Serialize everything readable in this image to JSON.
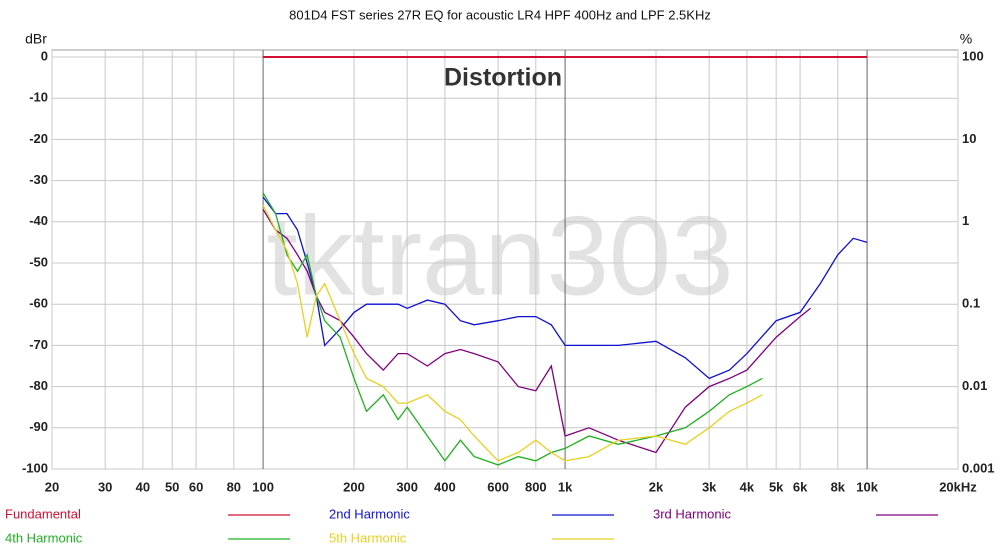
{
  "chart_data": {
    "type": "line",
    "title": "801D4 FST series 27R EQ for acoustic LR4 HPF 400Hz and LPF 2.5KHz",
    "annotation": "Distortion",
    "watermark": "tktran303",
    "y_label": "dBr",
    "y2_label": "%",
    "xscale": "log",
    "xlim": [
      20,
      20000
    ],
    "xticks": [
      20,
      30,
      40,
      50,
      60,
      80,
      100,
      200,
      300,
      400,
      600,
      800,
      {
        "value": 1000,
        "label": "1k"
      },
      {
        "value": 2000,
        "label": "2k"
      },
      {
        "value": 3000,
        "label": "3k"
      },
      {
        "value": 4000,
        "label": "4k"
      },
      {
        "value": 5000,
        "label": "5k"
      },
      {
        "value": 6000,
        "label": "6k"
      },
      {
        "value": 8000,
        "label": "8k"
      },
      {
        "value": 10000,
        "label": "10k"
      },
      {
        "value": 20000,
        "label": "20kHz"
      }
    ],
    "ylim": [
      -100,
      0
    ],
    "yticks": [
      0,
      -10,
      -20,
      -30,
      -40,
      -50,
      -60,
      -70,
      -80,
      -90,
      -100
    ],
    "y2scale": "log",
    "y2lim": [
      0.001,
      100
    ],
    "y2ticks": [
      100,
      10,
      1,
      0.1,
      0.01,
      0.001
    ],
    "grid": true,
    "legend": "bottom",
    "series": [
      {
        "name": "Fundamental",
        "color": "#d01030",
        "x": [
          100,
          10000
        ],
        "values": [
          0,
          0
        ]
      },
      {
        "name": "2nd Harmonic",
        "color": "#1010d0",
        "x": [
          100,
          110,
          120,
          130,
          140,
          150,
          160,
          180,
          200,
          220,
          250,
          280,
          300,
          350,
          400,
          450,
          500,
          600,
          700,
          800,
          900,
          1000,
          1200,
          1500,
          2000,
          2500,
          3000,
          3500,
          4000,
          5000,
          6000,
          7000,
          8000,
          9000,
          10000
        ],
        "values": [
          -34,
          -38,
          -38,
          -42,
          -50,
          -58,
          -70,
          -66,
          -62,
          -60,
          -60,
          -60,
          -61,
          -59,
          -60,
          -64,
          -65,
          -64,
          -63,
          -63,
          -65,
          -70,
          -70,
          -70,
          -69,
          -73,
          -78,
          -76,
          -72,
          -64,
          -62,
          -55,
          -48,
          -44,
          -45
        ]
      },
      {
        "name": "3rd Harmonic",
        "color": "#800080",
        "x": [
          100,
          110,
          120,
          130,
          140,
          150,
          160,
          180,
          200,
          220,
          250,
          280,
          300,
          350,
          400,
          450,
          500,
          600,
          700,
          800,
          900,
          1000,
          1200,
          1500,
          2000,
          2500,
          3000,
          3500,
          4000,
          5000,
          6000,
          6500
        ],
        "values": [
          -37,
          -42,
          -44,
          -48,
          -52,
          -58,
          -62,
          -64,
          -68,
          -72,
          -76,
          -72,
          -72,
          -75,
          -72,
          -71,
          -72,
          -74,
          -80,
          -81,
          -75,
          -92,
          -90,
          -93,
          -96,
          -85,
          -80,
          -78,
          -76,
          -68,
          -63,
          -61
        ]
      },
      {
        "name": "4th Harmonic",
        "color": "#20b020",
        "x": [
          100,
          110,
          120,
          130,
          140,
          150,
          160,
          180,
          200,
          220,
          250,
          280,
          300,
          350,
          400,
          450,
          500,
          600,
          700,
          800,
          900,
          1000,
          1200,
          1500,
          2000,
          2500,
          3000,
          3500,
          4000,
          4500
        ],
        "values": [
          -33,
          -38,
          -48,
          -52,
          -48,
          -58,
          -64,
          -68,
          -78,
          -86,
          -82,
          -88,
          -85,
          -92,
          -98,
          -93,
          -97,
          -99,
          -97,
          -98,
          -96,
          -95,
          -92,
          -94,
          -92,
          -90,
          -86,
          -82,
          -80,
          -78
        ]
      },
      {
        "name": "5th Harmonic",
        "color": "#e8d020",
        "x": [
          100,
          110,
          120,
          130,
          140,
          150,
          160,
          180,
          200,
          220,
          250,
          280,
          300,
          350,
          400,
          450,
          500,
          600,
          700,
          800,
          900,
          1000,
          1200,
          1500,
          2000,
          2500,
          3000,
          3500,
          4000,
          4500
        ],
        "values": [
          -36,
          -42,
          -47,
          -55,
          -68,
          -58,
          -55,
          -64,
          -72,
          -78,
          -80,
          -84,
          -84,
          -82,
          -86,
          -88,
          -92,
          -98,
          -96,
          -93,
          -96,
          -98,
          -97,
          -93,
          -92,
          -94,
          -90,
          -86,
          -84,
          -82
        ]
      }
    ]
  }
}
